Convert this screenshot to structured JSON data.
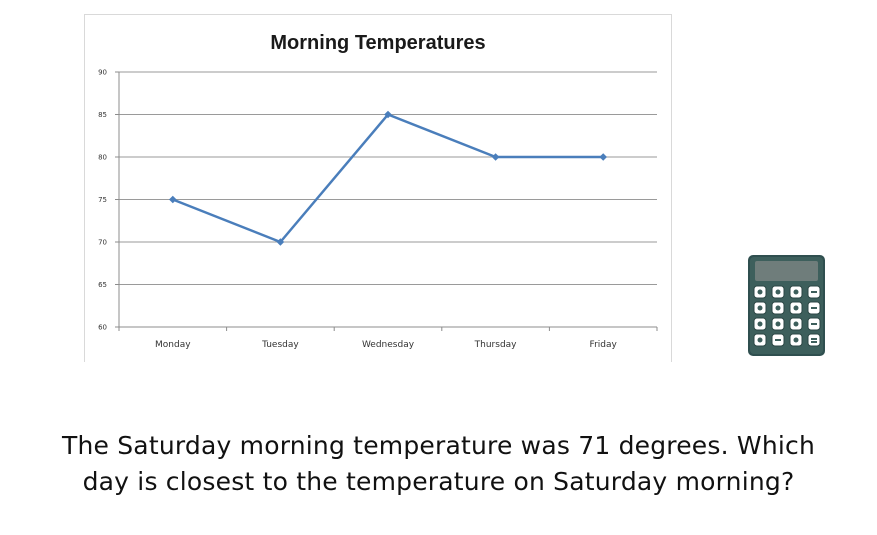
{
  "chart_data": {
    "type": "line",
    "title": "Morning Temperatures",
    "xlabel": "",
    "ylabel": "",
    "categories": [
      "Monday",
      "Tuesday",
      "Wednesday",
      "Thursday",
      "Friday"
    ],
    "series": [
      {
        "values": [
          75,
          70,
          85,
          80,
          80
        ],
        "color": "#4a7ebb"
      }
    ],
    "ylim": [
      60,
      90
    ],
    "yticks": [
      "60",
      "65",
      "70",
      "75",
      "80",
      "85",
      "90"
    ],
    "grid": true,
    "legend": "none"
  },
  "calculator_icon": "calculator-icon",
  "question": {
    "line1": "The Saturday morning temperature was 71 degrees.  Which",
    "line2": "day is closest to the temperature on Saturday morning?"
  }
}
